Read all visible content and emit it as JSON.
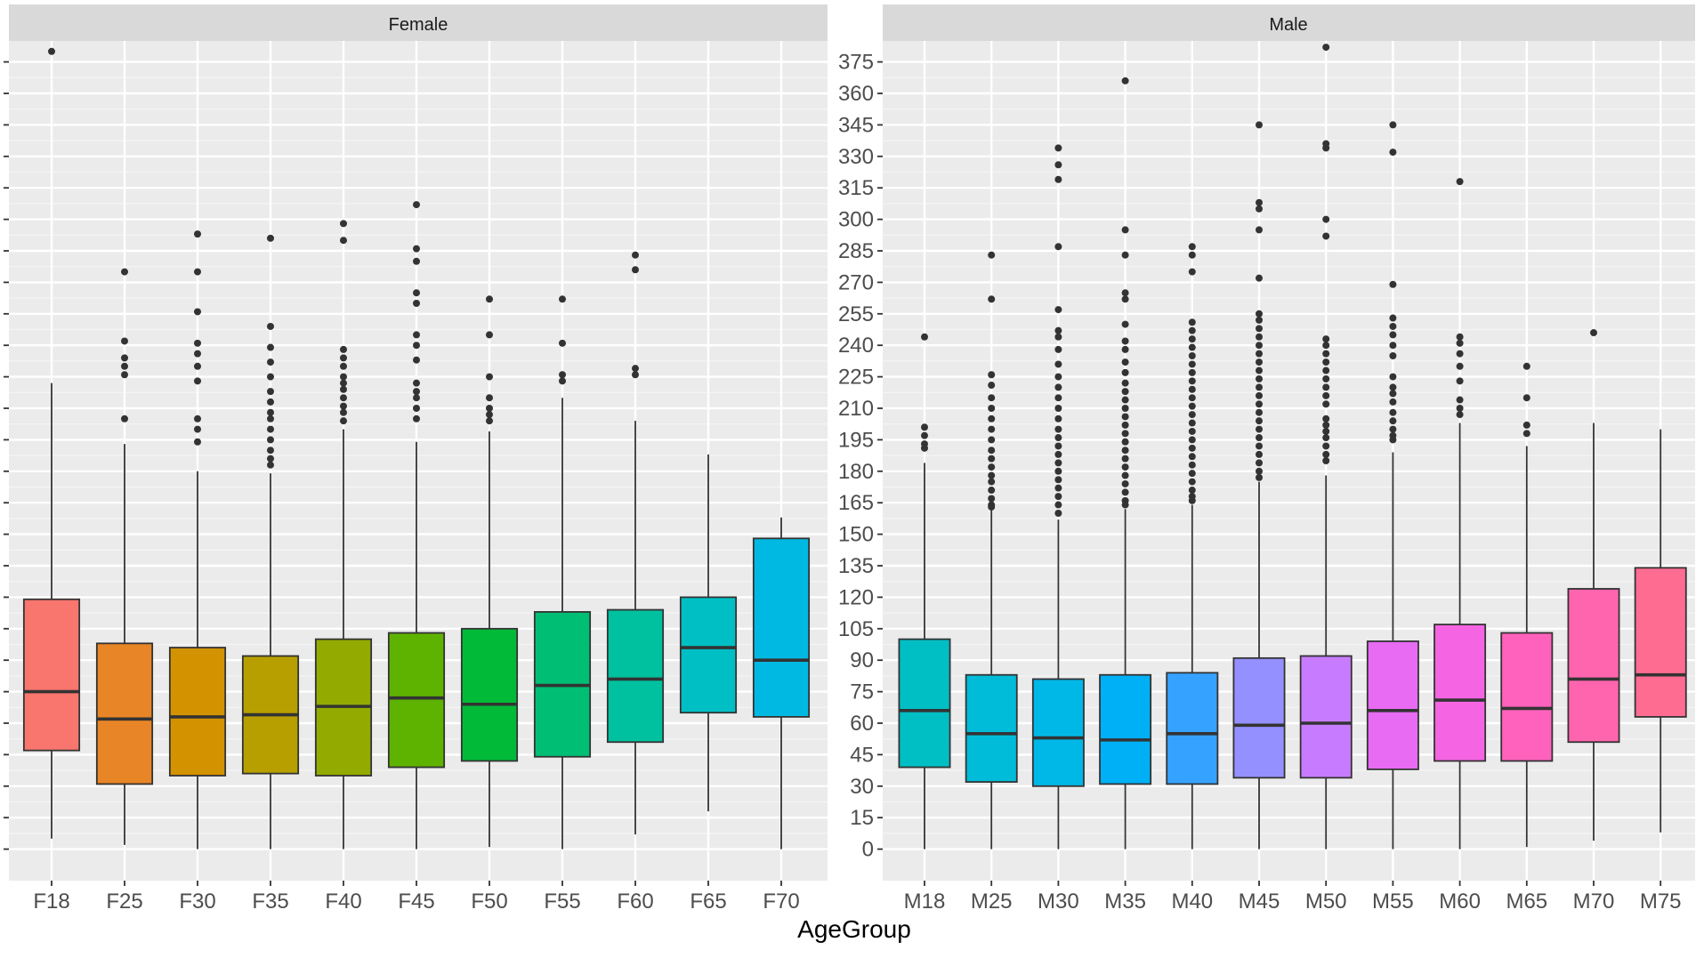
{
  "chart_data": {
    "type": "boxplot",
    "xlabel": "AgeGroup",
    "ylabel": "",
    "ylim": [
      -15,
      385
    ],
    "y_ticks": [
      0,
      15,
      30,
      45,
      60,
      75,
      90,
      105,
      120,
      135,
      150,
      165,
      180,
      195,
      210,
      225,
      240,
      255,
      270,
      285,
      300,
      315,
      330,
      345,
      360,
      375
    ],
    "grid": true,
    "legend": "none",
    "panels": [
      {
        "strip_label": "Female",
        "categories": [
          "F18",
          "F25",
          "F30",
          "F35",
          "F40",
          "F45",
          "F50",
          "F55",
          "F60",
          "F65",
          "F70"
        ],
        "colors": [
          "#F8766D",
          "#E88526",
          "#D39200",
          "#B79F00",
          "#93AA00",
          "#5EB300",
          "#00BA38",
          "#00BF74",
          "#00C19F",
          "#00BFC4",
          "#00B9E3"
        ],
        "boxes": [
          {
            "min": 5,
            "q1": 47,
            "median": 75,
            "q3": 119,
            "max": 222,
            "outliers": [
              380
            ]
          },
          {
            "min": 2,
            "q1": 31,
            "median": 62,
            "q3": 98,
            "max": 193,
            "outliers": [
              275,
              242,
              234,
              230,
              226,
              205
            ]
          },
          {
            "min": 0,
            "q1": 35,
            "median": 63,
            "q3": 96,
            "max": 180,
            "outliers": [
              293,
              275,
              256,
              241,
              236,
              230,
              223,
              205,
              200,
              194
            ]
          },
          {
            "min": 0,
            "q1": 36,
            "median": 64,
            "q3": 92,
            "max": 179,
            "outliers": [
              291,
              249,
              239,
              232,
              225,
              218,
              213,
              208,
              205,
              200,
              195,
              190,
              186,
              183
            ]
          },
          {
            "min": 0,
            "q1": 35,
            "median": 68,
            "q3": 100,
            "max": 200,
            "outliers": [
              298,
              290,
              238,
              234,
              230,
              225,
              222,
              219,
              215,
              211,
              208,
              204
            ]
          },
          {
            "min": 0,
            "q1": 39,
            "median": 72,
            "q3": 103,
            "max": 194,
            "outliers": [
              307,
              286,
              280,
              265,
              260,
              245,
              240,
              233,
              222,
              218,
              215,
              210,
              205
            ]
          },
          {
            "min": 1,
            "q1": 42,
            "median": 69,
            "q3": 105,
            "max": 199,
            "outliers": [
              262,
              245,
              225,
              215,
              210,
              207,
              204
            ]
          },
          {
            "min": 0,
            "q1": 44,
            "median": 78,
            "q3": 113,
            "max": 215,
            "outliers": [
              262,
              241,
              226,
              223
            ]
          },
          {
            "min": 7,
            "q1": 51,
            "median": 81,
            "q3": 114,
            "max": 204,
            "outliers": [
              283,
              276,
              229,
              226
            ]
          },
          {
            "min": 18,
            "q1": 65,
            "median": 96,
            "q3": 120,
            "max": 188,
            "outliers": []
          },
          {
            "min": 0,
            "q1": 63,
            "median": 90,
            "q3": 148,
            "max": 158,
            "outliers": []
          }
        ]
      },
      {
        "strip_label": "Male",
        "categories": [
          "M18",
          "M25",
          "M30",
          "M35",
          "M40",
          "M45",
          "M50",
          "M55",
          "M60",
          "M65",
          "M70",
          "M75"
        ],
        "colors": [
          "#00BFC4",
          "#00BCD8",
          "#00B8E7",
          "#00B0F6",
          "#35A2FF",
          "#9590FF",
          "#C77CFF",
          "#E76BF3",
          "#F564E3",
          "#FF62BC",
          "#FF65AE",
          "#FF6C91"
        ],
        "boxes": [
          {
            "min": 0,
            "q1": 39,
            "median": 66,
            "q3": 100,
            "max": 184,
            "outliers": [
              244,
              201,
              197,
              193,
              191
            ]
          },
          {
            "min": 0,
            "q1": 32,
            "median": 55,
            "q3": 83,
            "max": 162,
            "outliers": [
              283,
              262,
              226,
              221,
              215,
              210,
              205,
              200,
              195,
              190,
              186,
              182,
              178,
              175,
              171,
              167,
              164,
              163
            ]
          },
          {
            "min": 0,
            "q1": 30,
            "median": 53,
            "q3": 81,
            "max": 157,
            "outliers": [
              334,
              326,
              319,
              287,
              257,
              247,
              244,
              238,
              231,
              225,
              220,
              215,
              210,
              205,
              200,
              196,
              192,
              188,
              184,
              180,
              176,
              172,
              168,
              164,
              160
            ]
          },
          {
            "min": 0,
            "q1": 31,
            "median": 52,
            "q3": 83,
            "max": 162,
            "outliers": [
              366,
              295,
              283,
              265,
              262,
              250,
              242,
              238,
              232,
              227,
              222,
              218,
              214,
              210,
              206,
              202,
              198,
              194,
              190,
              186,
              182,
              178,
              174,
              170,
              166,
              164
            ]
          },
          {
            "min": 0,
            "q1": 31,
            "median": 55,
            "q3": 84,
            "max": 164,
            "outliers": [
              287,
              283,
              275,
              251,
              247,
              243,
              239,
              235,
              231,
              227,
              223,
              219,
              215,
              211,
              207,
              203,
              199,
              195,
              191,
              187,
              183,
              179,
              175,
              171,
              168,
              166
            ]
          },
          {
            "min": 0,
            "q1": 34,
            "median": 59,
            "q3": 91,
            "max": 175,
            "outliers": [
              345,
              308,
              305,
              295,
              272,
              255,
              252,
              248,
              244,
              240,
              236,
              232,
              228,
              224,
              220,
              216,
              212,
              208,
              204,
              200,
              196,
              192,
              188,
              184,
              180,
              177
            ]
          },
          {
            "min": 0,
            "q1": 34,
            "median": 60,
            "q3": 92,
            "max": 178,
            "outliers": [
              382,
              336,
              334,
              300,
              292,
              243,
              240,
              236,
              232,
              228,
              224,
              220,
              216,
              212,
              205,
              202,
              199,
              196,
              192,
              188,
              185
            ]
          },
          {
            "min": 0,
            "q1": 38,
            "median": 66,
            "q3": 99,
            "max": 189,
            "outliers": [
              345,
              332,
              269,
              253,
              249,
              245,
              240,
              235,
              225,
              220,
              217,
              213,
              208,
              204,
              200,
              197,
              195
            ]
          },
          {
            "min": 0,
            "q1": 42,
            "median": 71,
            "q3": 107,
            "max": 203,
            "outliers": [
              318,
              244,
              241,
              236,
              230,
              223,
              214,
              210,
              207
            ]
          },
          {
            "min": 1,
            "q1": 42,
            "median": 67,
            "q3": 103,
            "max": 192,
            "outliers": [
              230,
              215,
              202,
              198
            ]
          },
          {
            "min": 4,
            "q1": 51,
            "median": 81,
            "q3": 124,
            "max": 203,
            "outliers": [
              246
            ]
          },
          {
            "min": 8,
            "q1": 63,
            "median": 83,
            "q3": 134,
            "max": 200,
            "outliers": []
          }
        ]
      }
    ]
  }
}
